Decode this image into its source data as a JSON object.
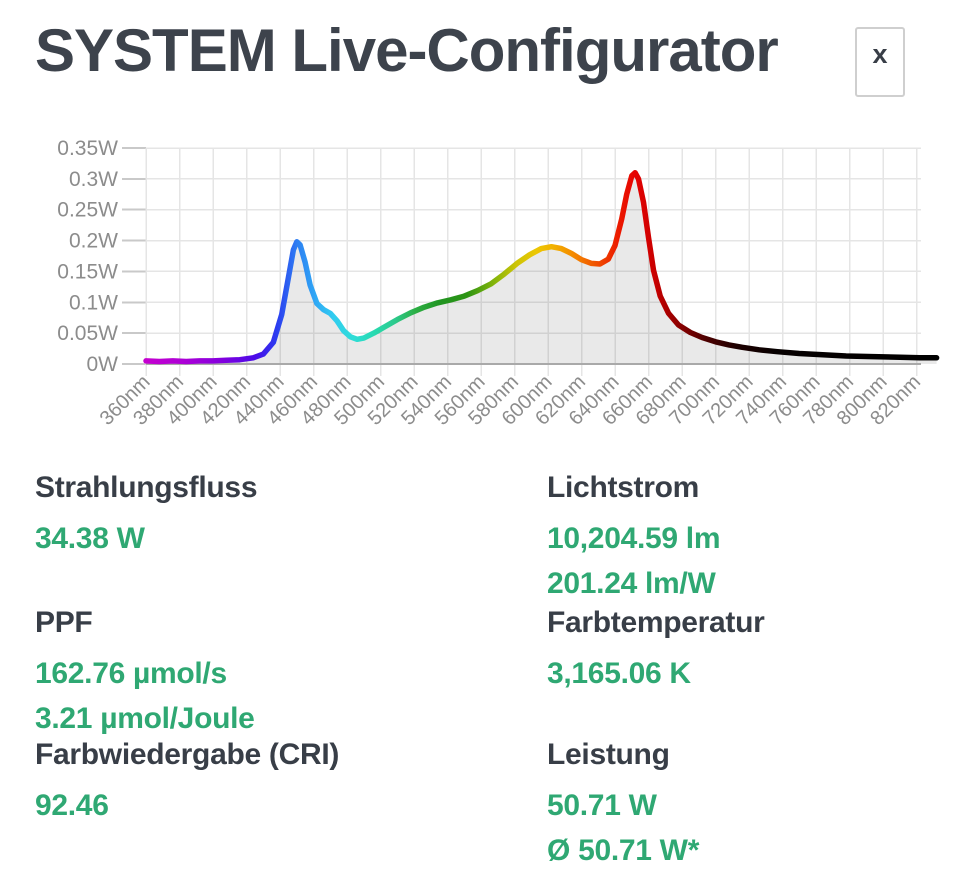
{
  "header": {
    "title": "SYSTEM Live-Configurator",
    "close_label": "x"
  },
  "chart_data": {
    "type": "area",
    "title": "",
    "xlabel": "",
    "ylabel": "",
    "x_unit": "nm",
    "y_unit": "W",
    "xlim": [
      360,
      832
    ],
    "ylim": [
      0,
      0.35
    ],
    "grid": true,
    "legend": false,
    "x_ticks": [
      "360nm",
      "380nm",
      "400nm",
      "420nm",
      "440nm",
      "460nm",
      "480nm",
      "500nm",
      "520nm",
      "540nm",
      "560nm",
      "580nm",
      "600nm",
      "620nm",
      "640nm",
      "660nm",
      "680nm",
      "700nm",
      "720nm",
      "740nm",
      "760nm",
      "780nm",
      "800nm",
      "820nm"
    ],
    "y_ticks": [
      "0W",
      "0.05W",
      "0.1W",
      "0.15W",
      "0.2W",
      "0.25W",
      "0.3W",
      "0.35W"
    ],
    "series": [
      {
        "name": "spectral-power-distribution",
        "points": [
          [
            360,
            0.005
          ],
          [
            368,
            0.004
          ],
          [
            376,
            0.005
          ],
          [
            384,
            0.004
          ],
          [
            392,
            0.005
          ],
          [
            400,
            0.005
          ],
          [
            408,
            0.006
          ],
          [
            416,
            0.007
          ],
          [
            424,
            0.01
          ],
          [
            430,
            0.016
          ],
          [
            436,
            0.035
          ],
          [
            441,
            0.08
          ],
          [
            445,
            0.14
          ],
          [
            448,
            0.185
          ],
          [
            450,
            0.198
          ],
          [
            452,
            0.193
          ],
          [
            455,
            0.165
          ],
          [
            458,
            0.128
          ],
          [
            462,
            0.098
          ],
          [
            466,
            0.088
          ],
          [
            470,
            0.082
          ],
          [
            474,
            0.07
          ],
          [
            478,
            0.054
          ],
          [
            482,
            0.044
          ],
          [
            486,
            0.04
          ],
          [
            490,
            0.042
          ],
          [
            496,
            0.05
          ],
          [
            503,
            0.061
          ],
          [
            510,
            0.072
          ],
          [
            518,
            0.083
          ],
          [
            526,
            0.092
          ],
          [
            534,
            0.099
          ],
          [
            542,
            0.104
          ],
          [
            550,
            0.11
          ],
          [
            558,
            0.119
          ],
          [
            566,
            0.13
          ],
          [
            574,
            0.146
          ],
          [
            582,
            0.164
          ],
          [
            589,
            0.177
          ],
          [
            596,
            0.187
          ],
          [
            602,
            0.19
          ],
          [
            608,
            0.187
          ],
          [
            614,
            0.179
          ],
          [
            620,
            0.169
          ],
          [
            626,
            0.163
          ],
          [
            631,
            0.162
          ],
          [
            636,
            0.17
          ],
          [
            640,
            0.192
          ],
          [
            644,
            0.235
          ],
          [
            647,
            0.275
          ],
          [
            650,
            0.305
          ],
          [
            652,
            0.31
          ],
          [
            654,
            0.3
          ],
          [
            657,
            0.262
          ],
          [
            660,
            0.205
          ],
          [
            663,
            0.152
          ],
          [
            667,
            0.11
          ],
          [
            672,
            0.082
          ],
          [
            678,
            0.063
          ],
          [
            685,
            0.051
          ],
          [
            692,
            0.043
          ],
          [
            700,
            0.036
          ],
          [
            708,
            0.031
          ],
          [
            716,
            0.027
          ],
          [
            726,
            0.023
          ],
          [
            737,
            0.02
          ],
          [
            750,
            0.017
          ],
          [
            764,
            0.015
          ],
          [
            778,
            0.013
          ],
          [
            794,
            0.012
          ],
          [
            810,
            0.011
          ],
          [
            822,
            0.01
          ],
          [
            832,
            0.01
          ]
        ]
      }
    ],
    "wavelength_gradient": [
      [
        360,
        "#c400cf"
      ],
      [
        382,
        "#ad00d6"
      ],
      [
        405,
        "#8400de"
      ],
      [
        425,
        "#4b0ae8"
      ],
      [
        438,
        "#2b3cf0"
      ],
      [
        450,
        "#2e7ef2"
      ],
      [
        461,
        "#2fa7f5"
      ],
      [
        472,
        "#31cdf0"
      ],
      [
        484,
        "#2eddd6"
      ],
      [
        497,
        "#28d9ae"
      ],
      [
        509,
        "#2cc98b"
      ],
      [
        521,
        "#2cae44"
      ],
      [
        536,
        "#219421"
      ],
      [
        552,
        "#2d9413"
      ],
      [
        568,
        "#85b50a"
      ],
      [
        581,
        "#cdc406"
      ],
      [
        593,
        "#ecc703"
      ],
      [
        604,
        "#f2af00"
      ],
      [
        616,
        "#f48600"
      ],
      [
        629,
        "#f05000"
      ],
      [
        641,
        "#ec1d00"
      ],
      [
        652,
        "#e60202"
      ],
      [
        664,
        "#c80000"
      ],
      [
        678,
        "#8d0000"
      ],
      [
        694,
        "#4e0000"
      ],
      [
        712,
        "#1f0000"
      ],
      [
        736,
        "#060000"
      ],
      [
        832,
        "#000000"
      ]
    ]
  },
  "stats": [
    {
      "label": "Strahlungsfluss",
      "values": [
        "34.38 W"
      ]
    },
    {
      "label": "Lichtstrom",
      "values": [
        "10,204.59 lm",
        "201.24 lm/W"
      ]
    },
    {
      "label": "PPF",
      "values": [
        "162.76 µmol/s",
        "3.21 µmol/Joule"
      ]
    },
    {
      "label": "Farbtemperatur",
      "values": [
        "3,165.06 K"
      ]
    },
    {
      "label": "Farbwiedergabe (CRI)",
      "values": [
        "92.46"
      ]
    },
    {
      "label": "Leistung",
      "values": [
        "50.71 W",
        "Ø 50.71 W*"
      ]
    }
  ],
  "colors": {
    "accent_green": "#2fa873",
    "heading_dark": "#383e47",
    "title_dark": "#3d434c",
    "axis_label_gray": "#8c8c8c",
    "grid_gray": "#e5e5e5",
    "baseline_gray": "#a9a9a9",
    "tick_gray": "#c9c9c9",
    "area_fill": "rgba(0,0,0,0.085)",
    "close_border": "#cfcfcf"
  }
}
